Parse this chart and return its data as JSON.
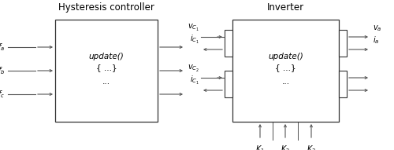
{
  "bg_color": "#ffffff",
  "title_hcc": "Hysteresis controller",
  "title_inv": "Inverter",
  "hcc_text_lines": [
    "update()",
    "{ ...}",
    "..."
  ],
  "inv_text_lines": [
    "update()",
    "{ ...}",
    "..."
  ],
  "hcc_inputs": [
    "$f_a$",
    "$f_b$",
    "$f_c$"
  ],
  "inv_left_labels": [
    "$v_{C_1}$",
    "$i_{C_1}$",
    "$v_{C_2}$",
    "$i_{C_1}$"
  ],
  "inv_right_top_labels": [
    "$v_a$",
    "$i_a$"
  ],
  "inv_bottom_labels": [
    "$K_1$",
    "$K_2$",
    "$K_3$"
  ],
  "arrow_color": "#555555",
  "box_color": "#333333",
  "font_size_title": 8.5,
  "font_size_label": 7.0,
  "font_size_inner": 7.5
}
